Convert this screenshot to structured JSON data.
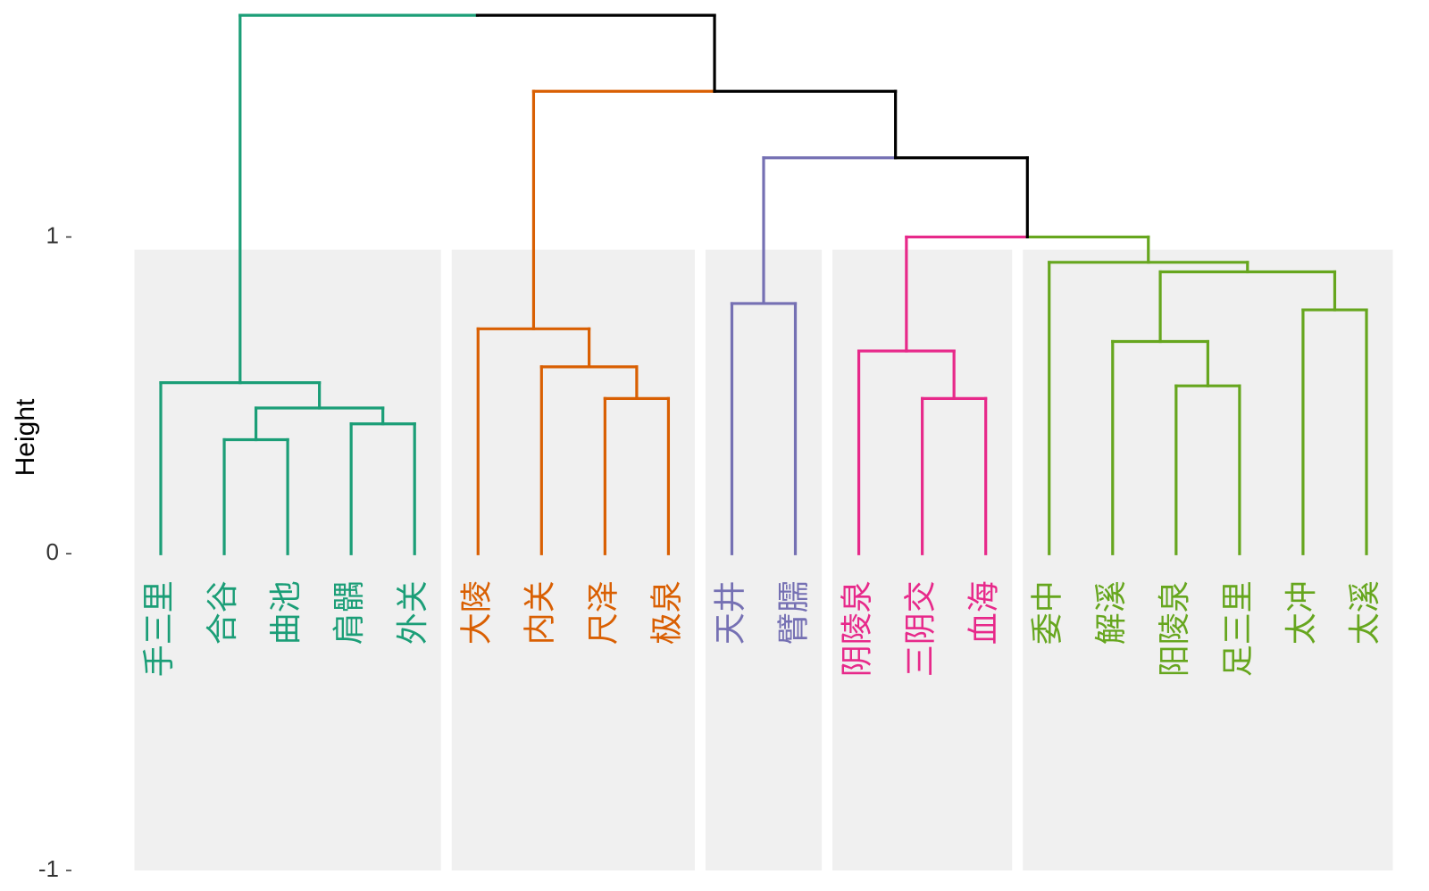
{
  "chart_data": {
    "type": "dendrogram",
    "ylabel": "Height",
    "ylim": [
      -1,
      1.72
    ],
    "yticks": [
      -1,
      0,
      1
    ],
    "grid": false,
    "leaves": [
      "手三里",
      "合谷",
      "曲池",
      "肩髃",
      "外关",
      "大陵",
      "内关",
      "尺泽",
      "极泉",
      "天井",
      "臂臑",
      "阴陵泉",
      "三阴交",
      "血海",
      "委中",
      "解溪",
      "阳陵泉",
      "足三里",
      "太冲",
      "太溪"
    ],
    "clusters": [
      {
        "leaves": [
          0,
          1,
          2,
          3,
          4
        ],
        "color": "#1b9e77"
      },
      {
        "leaves": [
          5,
          6,
          7,
          8
        ],
        "color": "#d95f02"
      },
      {
        "leaves": [
          9,
          10
        ],
        "color": "#7570b3"
      },
      {
        "leaves": [
          11,
          12,
          13
        ],
        "color": "#e7298a"
      },
      {
        "leaves": [
          14,
          15,
          16,
          17,
          18,
          19
        ],
        "color": "#66a61e"
      }
    ],
    "merges": [
      {
        "a": "L1",
        "b": "L2",
        "height": 0.36,
        "color": "#1b9e77"
      },
      {
        "a": "L3",
        "b": "L4",
        "height": 0.41,
        "color": "#1b9e77"
      },
      {
        "a": "M1",
        "b": "M2",
        "height": 0.46,
        "color": "#1b9e77"
      },
      {
        "a": "L0",
        "b": "M3",
        "height": 0.54,
        "color": "#1b9e77"
      },
      {
        "a": "L7",
        "b": "L8",
        "height": 0.49,
        "color": "#d95f02"
      },
      {
        "a": "L6",
        "b": "M5",
        "height": 0.59,
        "color": "#d95f02"
      },
      {
        "a": "L5",
        "b": "M6",
        "height": 0.71,
        "color": "#d95f02"
      },
      {
        "a": "L9",
        "b": "L10",
        "height": 0.79,
        "color": "#7570b3"
      },
      {
        "a": "L12",
        "b": "L13",
        "height": 0.49,
        "color": "#e7298a"
      },
      {
        "a": "L11",
        "b": "M9",
        "height": 0.64,
        "color": "#e7298a"
      },
      {
        "a": "L16",
        "b": "L17",
        "height": 0.53,
        "color": "#66a61e"
      },
      {
        "a": "L15",
        "b": "M11",
        "height": 0.67,
        "color": "#66a61e"
      },
      {
        "a": "L18",
        "b": "L19",
        "height": 0.77,
        "color": "#66a61e"
      },
      {
        "a": "M12",
        "b": "M13",
        "height": 0.89,
        "color": "#66a61e"
      },
      {
        "a": "L14",
        "b": "M14",
        "height": 0.92,
        "color": "#66a61e"
      },
      {
        "a": "M10",
        "b": "M15",
        "height": 1.0,
        "colorA": "#e7298a",
        "colorB": "#66a61e",
        "colorH": "#e7298a"
      },
      {
        "a": "M8",
        "b": "M16",
        "height": 1.25,
        "colorA": "#7570b3",
        "colorB": "#000000",
        "colorH": "#000000"
      },
      {
        "a": "M7",
        "b": "M17",
        "height": 1.46,
        "colorA": "#d95f02",
        "colorB": "#000000",
        "colorH": "#000000"
      },
      {
        "a": "M4",
        "b": "M18",
        "height": 1.7,
        "colorA": "#1b9e77",
        "colorB": "#000000",
        "colorH": "#000000"
      }
    ],
    "background_rect_color": "#f0f0f0"
  }
}
